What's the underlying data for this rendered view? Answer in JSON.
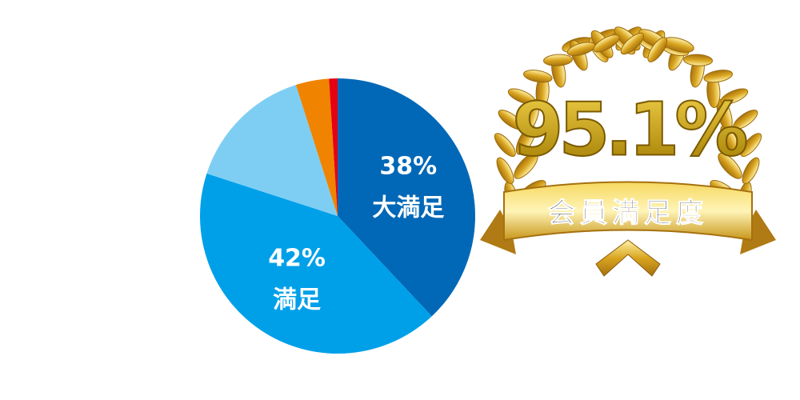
{
  "chart_data": {
    "type": "pie",
    "categories": [
      "大満足",
      "満足",
      null,
      null,
      null
    ],
    "values": [
      38,
      42,
      15.1,
      3.9,
      1.0
    ],
    "value_labels": [
      "38%",
      "42%",
      null,
      null,
      null
    ],
    "colors": [
      "#0068b7",
      "#00a0e9",
      "#7ecef4",
      "#f08300",
      "#e60012"
    ],
    "badge": {
      "value": "95.1%",
      "title": "会員満足度"
    }
  }
}
